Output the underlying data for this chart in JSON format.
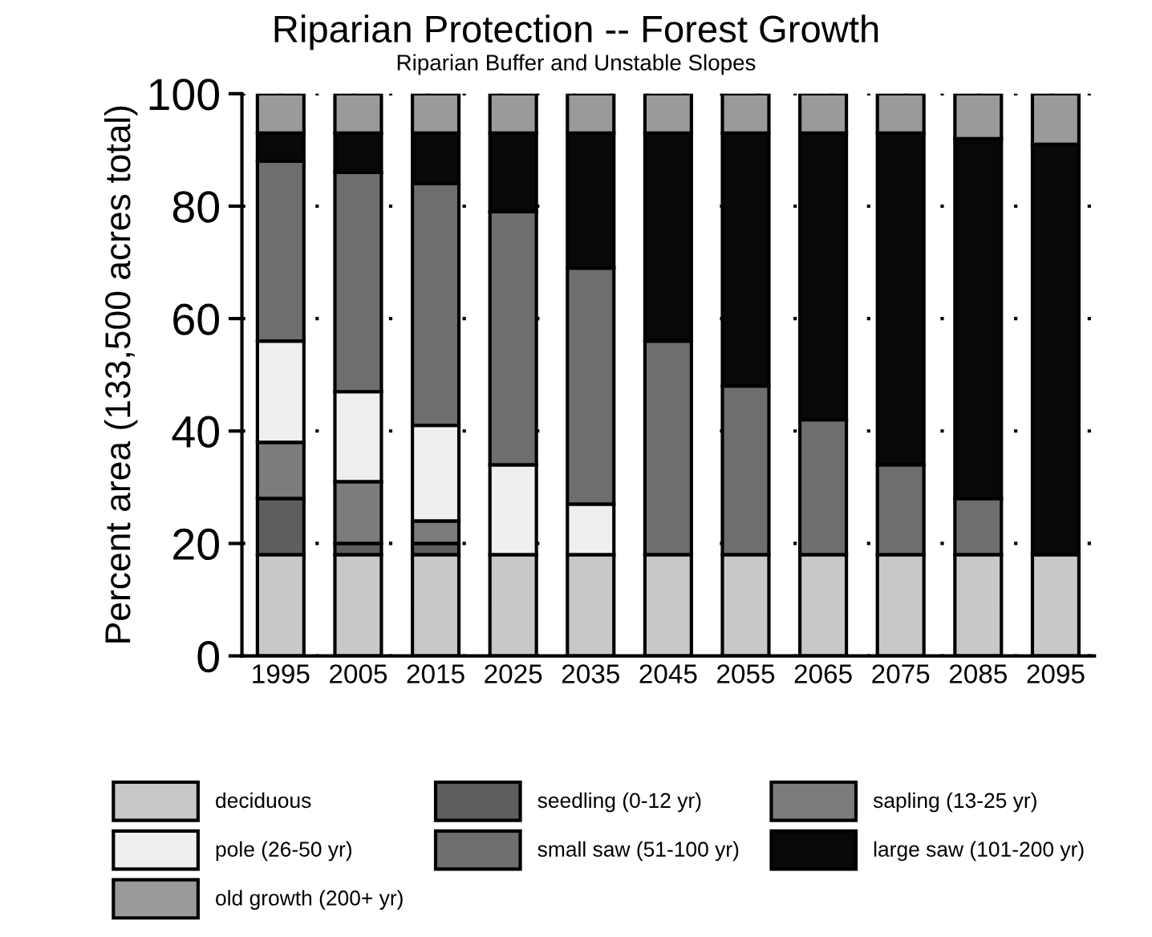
{
  "chart_data": {
    "type": "bar",
    "stacked": true,
    "title": "Riparian Protection -- Forest Growth",
    "subtitle": "Riparian Buffer and Unstable Slopes",
    "ylabel": "Percent area (133,500 acres total)",
    "categories": [
      "1995",
      "2005",
      "2015",
      "2025",
      "2035",
      "2045",
      "2055",
      "2065",
      "2075",
      "2085",
      "2095"
    ],
    "series": [
      {
        "name": "deciduous",
        "color": "#c8c8c8",
        "values": [
          18,
          18,
          18,
          18,
          18,
          18,
          18,
          18,
          18,
          18,
          18
        ]
      },
      {
        "name": "seedling (0-12 yr)",
        "color": "#5e5e5e",
        "values": [
          10,
          2,
          2,
          0,
          0,
          0,
          0,
          0,
          0,
          0,
          0
        ]
      },
      {
        "name": "sapling (13-25 yr)",
        "color": "#7c7c7c",
        "values": [
          10,
          11,
          4,
          0,
          0,
          0,
          0,
          0,
          0,
          0,
          0
        ]
      },
      {
        "name": "pole (26-50 yr)",
        "color": "#efefef",
        "values": [
          18,
          16,
          17,
          16,
          9,
          0,
          0,
          0,
          0,
          0,
          0
        ]
      },
      {
        "name": "small saw (51-100 yr)",
        "color": "#6e6e6e",
        "values": [
          32,
          39,
          43,
          45,
          42,
          38,
          30,
          24,
          16,
          10,
          0
        ]
      },
      {
        "name": "large saw (101-200 yr)",
        "color": "#080808",
        "values": [
          5,
          7,
          9,
          14,
          24,
          37,
          45,
          51,
          59,
          64,
          73
        ]
      },
      {
        "name": "old growth (200+ yr)",
        "color": "#9a9a9a",
        "values": [
          7,
          7,
          7,
          7,
          7,
          7,
          7,
          7,
          7,
          8,
          9
        ]
      }
    ],
    "ylim": [
      0,
      100
    ],
    "yticks": [
      0,
      20,
      40,
      60,
      80,
      100
    ],
    "grid": "y",
    "legend": "bottom"
  }
}
